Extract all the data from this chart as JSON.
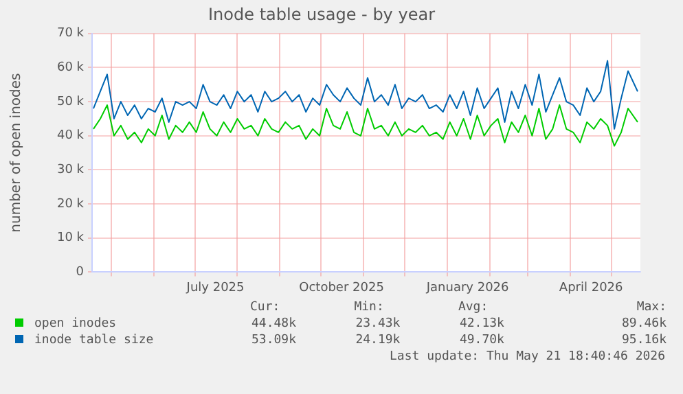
{
  "chart_data": {
    "type": "line",
    "title": "Inode table usage - by year",
    "ylabel": "number of open inodes",
    "x": [
      "2025-04-18",
      "2025-04-23",
      "2025-04-28",
      "2025-05-03",
      "2025-05-08",
      "2025-05-13",
      "2025-05-18",
      "2025-05-23",
      "2025-05-28",
      "2025-06-02",
      "2025-06-07",
      "2025-06-12",
      "2025-06-17",
      "2025-06-22",
      "2025-06-27",
      "2025-07-02",
      "2025-07-07",
      "2025-07-12",
      "2025-07-17",
      "2025-07-22",
      "2025-07-27",
      "2025-08-01",
      "2025-08-06",
      "2025-08-11",
      "2025-08-16",
      "2025-08-21",
      "2025-08-26",
      "2025-08-31",
      "2025-09-05",
      "2025-09-10",
      "2025-09-15",
      "2025-09-20",
      "2025-09-25",
      "2025-09-30",
      "2025-10-05",
      "2025-10-10",
      "2025-10-15",
      "2025-10-20",
      "2025-10-25",
      "2025-10-30",
      "2025-11-04",
      "2025-11-09",
      "2025-11-14",
      "2025-11-19",
      "2025-11-24",
      "2025-11-29",
      "2025-12-04",
      "2025-12-09",
      "2025-12-14",
      "2025-12-19",
      "2025-12-24",
      "2025-12-29",
      "2026-01-03",
      "2026-01-08",
      "2026-01-13",
      "2026-01-18",
      "2026-01-23",
      "2026-01-28",
      "2026-02-02",
      "2026-02-07",
      "2026-02-12",
      "2026-02-17",
      "2026-02-22",
      "2026-02-27",
      "2026-03-04",
      "2026-03-09",
      "2026-03-14",
      "2026-03-19",
      "2026-03-24",
      "2026-03-29",
      "2026-04-03",
      "2026-04-08",
      "2026-04-13",
      "2026-04-18",
      "2026-04-23",
      "2026-04-28",
      "2026-05-03",
      "2026-05-08",
      "2026-05-13",
      "2026-05-20"
    ],
    "series": [
      {
        "name": "open inodes",
        "color": "#00cc00",
        "values": [
          42000,
          45000,
          49000,
          40000,
          43000,
          39000,
          41000,
          38000,
          42000,
          40000,
          46000,
          39000,
          43000,
          41000,
          44000,
          41000,
          47000,
          42000,
          40000,
          44000,
          41000,
          45000,
          42000,
          43000,
          40000,
          45000,
          42000,
          41000,
          44000,
          42000,
          43000,
          39000,
          42000,
          40000,
          48000,
          43000,
          42000,
          47000,
          41000,
          40000,
          48000,
          42000,
          43000,
          40000,
          44000,
          40000,
          42000,
          41000,
          43000,
          40000,
          41000,
          39000,
          44000,
          40000,
          45000,
          39000,
          46000,
          40000,
          43000,
          45000,
          38000,
          44000,
          41000,
          46000,
          40000,
          48000,
          39000,
          42000,
          49000,
          42000,
          41000,
          38000,
          44000,
          42000,
          45000,
          43000,
          37000,
          41000,
          48000,
          44000
        ]
      },
      {
        "name": "inode table size",
        "color": "#0066b3",
        "values": [
          48000,
          53000,
          58000,
          45000,
          50000,
          46000,
          49000,
          45000,
          48000,
          47000,
          51000,
          44000,
          50000,
          49000,
          50000,
          48000,
          55000,
          50000,
          49000,
          52000,
          48000,
          53000,
          50000,
          52000,
          47000,
          53000,
          50000,
          51000,
          53000,
          50000,
          52000,
          47000,
          51000,
          49000,
          55000,
          52000,
          50000,
          54000,
          51000,
          49000,
          57000,
          50000,
          52000,
          49000,
          55000,
          48000,
          51000,
          50000,
          52000,
          48000,
          49000,
          47000,
          52000,
          48000,
          53000,
          46000,
          54000,
          48000,
          51000,
          54000,
          44000,
          53000,
          48000,
          55000,
          49000,
          58000,
          47000,
          52000,
          57000,
          50000,
          49000,
          46000,
          54000,
          50000,
          53000,
          62000,
          42000,
          51000,
          59000,
          53000
        ]
      }
    ],
    "xlim": [
      "2025-04-17",
      "2026-05-22"
    ],
    "xticks": [
      {
        "value": "2025-05-01",
        "label": null
      },
      {
        "value": "2025-06-01",
        "label": null
      },
      {
        "value": "2025-07-01",
        "label": null
      },
      {
        "value": "2025-07-16",
        "label": "July 2025"
      },
      {
        "value": "2025-08-01",
        "label": null
      },
      {
        "value": "2025-09-01",
        "label": null
      },
      {
        "value": "2025-10-01",
        "label": null
      },
      {
        "value": "2025-10-16",
        "label": "October 2025"
      },
      {
        "value": "2025-11-01",
        "label": null
      },
      {
        "value": "2025-12-01",
        "label": null
      },
      {
        "value": "2026-01-01",
        "label": null
      },
      {
        "value": "2026-01-16",
        "label": "January 2026"
      },
      {
        "value": "2026-02-01",
        "label": null
      },
      {
        "value": "2026-03-01",
        "label": null
      },
      {
        "value": "2026-04-01",
        "label": null
      },
      {
        "value": "2026-04-16",
        "label": "April 2026"
      },
      {
        "value": "2026-05-01",
        "label": null
      }
    ],
    "ylim": [
      0,
      70000
    ],
    "yticks": [
      0,
      {
        "value": 10000,
        "label": "10 k"
      },
      {
        "value": 20000,
        "label": "20 k"
      },
      {
        "value": 30000,
        "label": "30 k"
      },
      {
        "value": 40000,
        "label": "40 k"
      },
      {
        "value": 50000,
        "label": "50 k"
      },
      {
        "value": 60000,
        "label": "60 k"
      },
      {
        "value": 70000,
        "label": "70 k"
      }
    ],
    "grid": true,
    "legend": "bottom",
    "marker": "none",
    "line_style": "solid",
    "annotations": [
      "Cur:",
      "Min:",
      "Avg:",
      "Max:",
      "44.48k",
      "23.43k",
      "42.13k",
      "89.46k",
      "53.09k",
      "24.19k",
      "49.70k",
      "95.16k",
      "Last update: Thu May 21 18:40:46 2026"
    ]
  }
}
